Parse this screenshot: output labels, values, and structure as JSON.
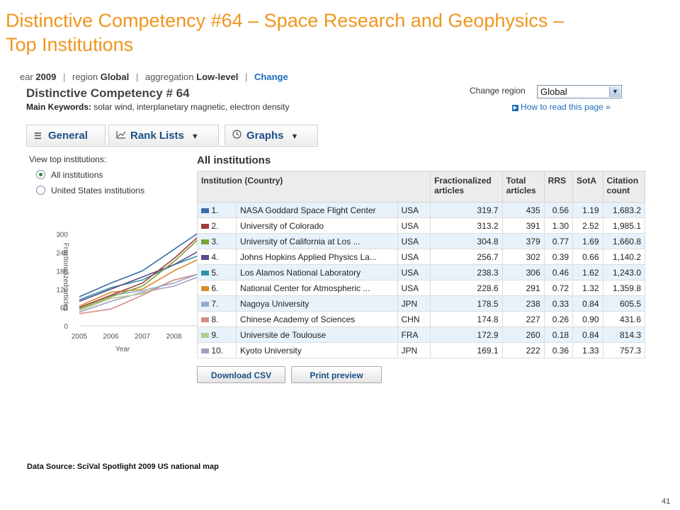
{
  "slide": {
    "title_line1": "Distinctive Competency #64 – Space Research and Geophysics –",
    "title_line2": "Top Institutions",
    "source": "Data Source: SciVal Spotlight 2009 US national map",
    "page_number": "41"
  },
  "breadcrumb": {
    "year_label": "ear",
    "year_value": "2009",
    "region_label": "region",
    "region_value": "Global",
    "aggregation_label": "aggregation",
    "aggregation_value": "Low-level",
    "change_link": "Change"
  },
  "header": {
    "title": "Distinctive Competency # 64",
    "keywords_label": "Main Keywords:",
    "keywords": "solar wind, interplanetary magnetic, electron density",
    "change_region_label": "Change region",
    "region_selected": "Global",
    "how_to_link": "How to read this page »"
  },
  "tabs": [
    {
      "label": "General",
      "icon": "list-icon"
    },
    {
      "label": "Rank Lists",
      "icon": "line-chart-icon",
      "dropdown": "▼"
    },
    {
      "label": "Graphs",
      "icon": "clock-icon",
      "dropdown": "▼"
    }
  ],
  "filters": {
    "heading": "View top institutions:",
    "options": [
      "All institutions",
      "United States institutions"
    ],
    "selected": "All institutions"
  },
  "table": {
    "heading": "All institutions",
    "columns": [
      "Institution (Country)",
      "Fractionalized articles",
      "Total articles",
      "RRS",
      "SotA",
      "Citation count"
    ],
    "rows": [
      {
        "rank": "1.",
        "name": "NASA Goddard Space Flight Center",
        "country": "USA",
        "frac": "319.7",
        "total": "435",
        "rrs": "0.56",
        "sota": "1.19",
        "cites": "1,683.2",
        "color": "#3a6ea8"
      },
      {
        "rank": "2.",
        "name": "University of Colorado",
        "country": "USA",
        "frac": "313.2",
        "total": "391",
        "rrs": "1.30",
        "sota": "2.52",
        "cites": "1,985.1",
        "color": "#a33a3a"
      },
      {
        "rank": "3.",
        "name": "University of California at Los ...",
        "country": "USA",
        "frac": "304.8",
        "total": "379",
        "rrs": "0.77",
        "sota": "1.69",
        "cites": "1,660.8",
        "color": "#7aa33c"
      },
      {
        "rank": "4.",
        "name": "Johns Hopkins Applied Physics La...",
        "country": "USA",
        "frac": "256.7",
        "total": "302",
        "rrs": "0.39",
        "sota": "0.66",
        "cites": "1,140.2",
        "color": "#5e4a8e"
      },
      {
        "rank": "5.",
        "name": "Los Alamos National Laboratory",
        "country": "USA",
        "frac": "238.3",
        "total": "306",
        "rrs": "0.46",
        "sota": "1.62",
        "cites": "1,243.0",
        "color": "#2f93a8"
      },
      {
        "rank": "6.",
        "name": "National Center for Atmospheric ...",
        "country": "USA",
        "frac": "228.6",
        "total": "291",
        "rrs": "0.72",
        "sota": "1.32",
        "cites": "1,359.8",
        "color": "#dd8a2a"
      },
      {
        "rank": "7.",
        "name": "Nagoya University",
        "country": "JPN",
        "frac": "178.5",
        "total": "238",
        "rrs": "0.33",
        "sota": "0.84",
        "cites": "605.5",
        "color": "#93a9cc"
      },
      {
        "rank": "8.",
        "name": "Chinese Academy of Sciences",
        "country": "CHN",
        "frac": "174.8",
        "total": "227",
        "rrs": "0.26",
        "sota": "0.90",
        "cites": "431.6",
        "color": "#d98b8b"
      },
      {
        "rank": "9.",
        "name": "Universite de Toulouse",
        "country": "FRA",
        "frac": "172.9",
        "total": "260",
        "rrs": "0.18",
        "sota": "0.84",
        "cites": "814.3",
        "color": "#b0cc8a"
      },
      {
        "rank": "10.",
        "name": "Kyoto University",
        "country": "JPN",
        "frac": "169.1",
        "total": "222",
        "rrs": "0.36",
        "sota": "1.33",
        "cites": "757.3",
        "color": "#a89cc4"
      }
    ]
  },
  "buttons": {
    "download": "Download CSV",
    "print": "Print preview"
  },
  "chart_data": {
    "type": "line",
    "title": "",
    "xlabel": "Year",
    "ylabel": "Fractionalized articles",
    "x": [
      "2005",
      "2006",
      "2007",
      "2008",
      "2009"
    ],
    "ylim": [
      0,
      320
    ],
    "yticks": [
      "0",
      "60",
      "120",
      "180",
      "240",
      "300"
    ],
    "grid": false,
    "series": [
      {
        "color": "#3a6ea8",
        "values": [
          95,
          140,
          180,
          250,
          319.7
        ]
      },
      {
        "color": "#a33a3a",
        "values": [
          60,
          100,
          140,
          220,
          313.2
        ]
      },
      {
        "color": "#7aa33c",
        "values": [
          55,
          95,
          130,
          210,
          304.8
        ]
      },
      {
        "color": "#5e4a8e",
        "values": [
          80,
          120,
          160,
          200,
          256.7
        ]
      },
      {
        "color": "#2f93a8",
        "values": [
          85,
          125,
          150,
          200,
          238.3
        ]
      },
      {
        "color": "#dd8a2a",
        "values": [
          65,
          110,
          120,
          180,
          228.6
        ]
      },
      {
        "color": "#93a9cc",
        "values": [
          60,
          100,
          115,
          140,
          178.5
        ]
      },
      {
        "color": "#d98b8b",
        "values": [
          40,
          55,
          100,
          150,
          174.8
        ]
      },
      {
        "color": "#b0cc8a",
        "values": [
          50,
          90,
          105,
          150,
          172.9
        ]
      },
      {
        "color": "#a89cc4",
        "values": [
          45,
          80,
          110,
          130,
          169.1
        ]
      }
    ]
  }
}
